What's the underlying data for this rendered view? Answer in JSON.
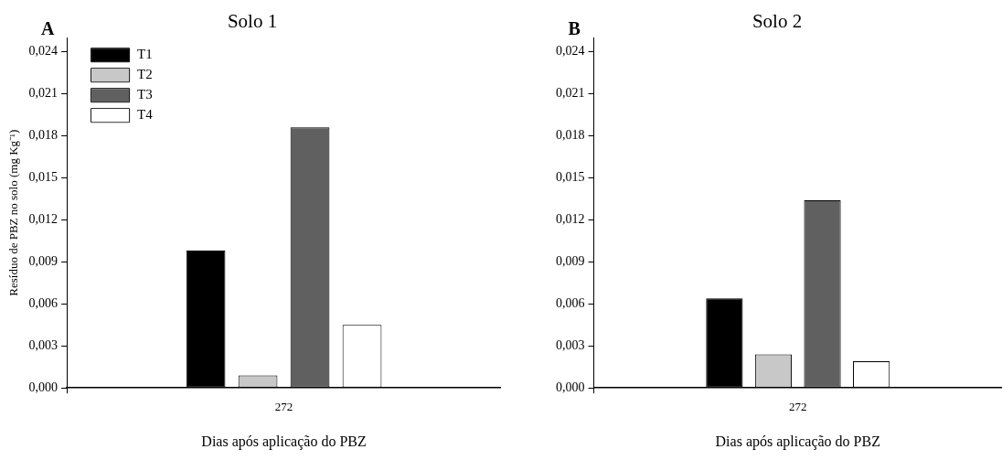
{
  "chart_data": [
    {
      "type": "bar",
      "title": "Solo 1",
      "xlabel": "Dias após aplicação do PBZ",
      "ylabel": "Resíduo de PBZ no solo (mg Kg⁻¹)",
      "annotations": [
        "A"
      ],
      "categories": [
        "272"
      ],
      "series": [
        {
          "name": "T1",
          "color": "#000000",
          "values": [
            0.0098
          ]
        },
        {
          "name": "T2",
          "color": "#c8c8c8",
          "values": [
            0.0009
          ]
        },
        {
          "name": "T3",
          "color": "#606060",
          "values": [
            0.0186
          ]
        },
        {
          "name": "T4",
          "color": "#ffffff",
          "values": [
            0.0045
          ]
        }
      ],
      "ylim": [
        0,
        0.025
      ],
      "yticks": [
        {
          "value": 0,
          "label": "0,000"
        },
        {
          "value": 0.003,
          "label": "0,003"
        },
        {
          "value": 0.006,
          "label": "0,006"
        },
        {
          "value": 0.009,
          "label": "0,009"
        },
        {
          "value": 0.012,
          "label": "0,012"
        },
        {
          "value": 0.015,
          "label": "0,015"
        },
        {
          "value": 0.018,
          "label": "0,018"
        },
        {
          "value": 0.021,
          "label": "0,021"
        },
        {
          "value": 0.024,
          "label": "0,024"
        }
      ],
      "grid": false,
      "legend": "top left"
    },
    {
      "type": "bar",
      "title": "Solo 2",
      "xlabel": "Dias após aplicação do PBZ",
      "annotations": [
        "B"
      ],
      "categories": [
        "272"
      ],
      "series": [
        {
          "color": "#000000",
          "values": [
            0.0064
          ]
        },
        {
          "color": "#c8c8c8",
          "values": [
            0.0024
          ]
        },
        {
          "color": "#606060",
          "values": [
            0.0134
          ]
        },
        {
          "color": "#ffffff",
          "values": [
            0.0019
          ]
        }
      ],
      "ylim": [
        0,
        0.025
      ],
      "yticks": [
        {
          "value": 0,
          "label": "0,000"
        },
        {
          "value": 0.003,
          "label": "0,003"
        },
        {
          "value": 0.006,
          "label": "0,006"
        },
        {
          "value": 0.009,
          "label": "0,009"
        },
        {
          "value": 0.012,
          "label": "0,012"
        },
        {
          "value": 0.015,
          "label": "0,015"
        },
        {
          "value": 0.018,
          "label": "0,018"
        },
        {
          "value": 0.021,
          "label": "0,021"
        },
        {
          "value": 0.024,
          "label": "0,024"
        }
      ],
      "grid": false,
      "legend": false
    }
  ]
}
